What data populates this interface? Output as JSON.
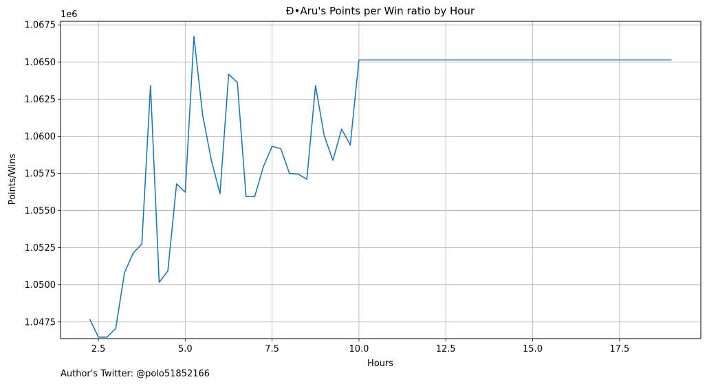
{
  "chart_data": {
    "type": "line",
    "title": "Đ•Aru's Points per Win ratio by Hour",
    "xlabel": "Hours",
    "ylabel": "Points/Wins",
    "y_multiplier_label": "1e6",
    "xlim": [
      1.41,
      19.84
    ],
    "ylim": [
      1.04638,
      1.06774
    ],
    "x_ticks": [
      2.5,
      5.0,
      7.5,
      10.0,
      12.5,
      15.0,
      17.5
    ],
    "x_tick_labels": [
      "2.5",
      "5.0",
      "7.5",
      "10.0",
      "12.5",
      "15.0",
      "17.5"
    ],
    "y_ticks": [
      1.0475,
      1.05,
      1.0525,
      1.055,
      1.0575,
      1.06,
      1.0625,
      1.065,
      1.0675
    ],
    "y_tick_labels": [
      "1.0475",
      "1.0500",
      "1.0525",
      "1.0550",
      "1.0575",
      "1.0600",
      "1.0625",
      "1.0650",
      "1.0675"
    ],
    "grid": true,
    "series": [
      {
        "color": "#1f77b4",
        "x": [
          2.25,
          2.5,
          2.75,
          3.0,
          3.25,
          3.5,
          3.75,
          4.0,
          4.25,
          4.5,
          4.75,
          5.0,
          5.25,
          5.5,
          5.75,
          6.0,
          6.25,
          6.5,
          6.75,
          7.0,
          7.25,
          7.5,
          7.75,
          8.0,
          8.25,
          8.5,
          8.75,
          9.0,
          9.25,
          9.5,
          9.75,
          10.0,
          19.0
        ],
        "y": [
          1.0477,
          1.04648,
          1.04648,
          1.04707,
          1.0508,
          1.05213,
          1.05275,
          1.06341,
          1.05017,
          1.05094,
          1.0568,
          1.05623,
          1.06672,
          1.06144,
          1.0584,
          1.05614,
          1.06418,
          1.06362,
          1.05594,
          1.05594,
          1.05796,
          1.05932,
          1.05917,
          1.0575,
          1.05745,
          1.05711,
          1.06341,
          1.06004,
          1.05838,
          1.06048,
          1.05941,
          1.06514,
          1.06514
        ]
      }
    ]
  },
  "footer": {
    "credit": "Author's Twitter: @polo51852166"
  }
}
